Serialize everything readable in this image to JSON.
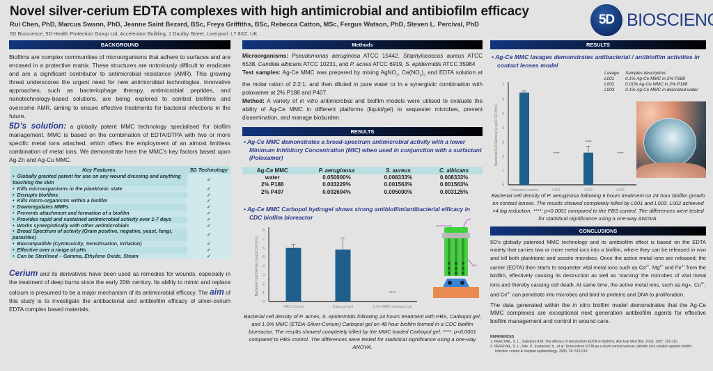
{
  "header": {
    "title": "Novel silver-cerium EDTA complexes with high antimicrobial and antibiofilm efficacy",
    "authors": "Rui Chen, PhD, Marcus Swann, PhD, Jeanne Saint Bezard, BSc, Freya Griffiths, BSc, Rebecca Catton, MSc, Fergus Watson, PhD, Steven L. Percival, PhD",
    "affiliation": "5D Bioscience, 5D Health Protection Group Ltd, Accelerator Building, 1 Daulby Street, Liverpool. L7 8XZ, UK",
    "logo_mark": "5D",
    "logo_text": "BIOSCIENCE"
  },
  "colors": {
    "accent": "#2a3a8e",
    "bar": "#1f5f8b",
    "table_bg": "#b9dfe2"
  },
  "background": {
    "heading": "BACKGROUND",
    "intro": "Biofilms are complex communities of microorganisms that adhere to surfaces and are encased in a protective matrix. These structures are notoriously difficult to eradicate and are a significant contributor to antimicrobial resistance (AMR). This growing threat underscores the urgent need for new antimicrobial technologies. Innovative approaches, such as bacteriophage therapy, antimicrobial peptides, and nanotechnology-based solutions, are being explored to combat biofilms and overcome AMR, aiming to ensure effective treatments for bacterial infections in the future.",
    "solution_label": "5D’s solution:",
    "solution_text": " a globally patent MMC technology specialised for biofilm management. MMC is based on the combination of EDTA/DTPA with two or more specific metal ions attached, which offers the employment of an almost limitless combination of metal ions. We demonstrate here the MMC’s key factors based upon Ag-Zn and Ag-Cu MMC.",
    "features_header": [
      "Key Features",
      "5D Technology"
    ],
    "check": "✓",
    "features": [
      "Globally granted patent for use on any wound dressing and anything touching the skin",
      "Kills microorganisms in the planktonic state",
      "Disrupts biofilms",
      "Kills micro-organisms within a biofilm",
      "Downregulates MMPs",
      "Prevents attachment and formation of a biofilm",
      "Provides rapid and sustained antimicrobial activity over 1-7 days",
      "Works synergistically with other antimicrobials",
      "Broad Spectrum of activity (Gram positive, negative, yeast, fungi, parasites)",
      "Biocompatible (Cytotoxicity, Sensitisation, Irritation)",
      "Effective over a range of pHs",
      "Can be Sterilised – Gamma, Ethylene Oxide, Steam"
    ],
    "cerium_label": "Cerium",
    "cerium_text": " and its derivatives have been used as remedies for wounds, especially in the treatment of deep burns since the early 20th century. Its ability to mimic and replace calcium is presumed to be a major mechanism of its antimicrobial efficacy. The ",
    "aim_label": "aim",
    "aim_text": " of this study is to investigate the antibacterial and antibiofilm efficacy of silver-cerium EDTA complex based materials."
  },
  "methods": {
    "heading": "Methods",
    "micro_label": "Microorganisms:",
    "micro_text_parts": [
      "Pseudomonas aeruginosa",
      " ATCC 15442, ",
      "Staphylococcus aureus",
      " ATCC 6538, ",
      "Candida albicans",
      " ATCC 10231, and ",
      "P. acnes",
      " ATCC 6919, ",
      "S. epidermidis",
      " ATCC 35984"
    ],
    "samples_label": "Test samples:",
    "samples_text_a": " Ag-Ce MMC was prepared by mixing AgNO",
    "samples_sub1": "3",
    "samples_text_b": ", Ce(NO",
    "samples_sub2": "3",
    "samples_text_c": ")",
    "samples_sub3": "3",
    "samples_text_d": " and EDTA solution at the molar ration of 2:2:1, and then diluted in pure water or in a synergistic combination with poloxamer at 2% P188 and P407.",
    "method_label": "Method:",
    "method_text_a": " A variety of ",
    "method_italic": "in vitro",
    "method_text_b": " antimicrobial and biofilm models were utilised to evaluate the ability of Ag-Ce MMC in different platforms (liquid/gel) to sequester microbes, prevent dissemination, and manage bioburden."
  },
  "results_mid": {
    "heading": "RESULTS",
    "bullet1": "Ag-Ce MMC demonstrates a broad-spectrum antimicrobial activity with a lower Minimum Inhibitory Concentration (MIC) when used in conjunction with a surfactant (Poloxamer)",
    "mic_table": {
      "headers": [
        "Ag-Ce MMC",
        "P. aeruginosa",
        "S. aureus",
        "C. albicans"
      ],
      "rows": [
        [
          "water",
          "0.050000%",
          "0.008333%",
          "0.008333%"
        ],
        [
          "2% P188",
          "0.003229%",
          "0.001563%",
          "0.001563%"
        ],
        [
          "2% P407",
          "0.002604%",
          "0.005000%",
          "0.003125%"
        ]
      ]
    },
    "bullet2": "Ag-Ce MMC Carbopol hydrogel shows strong antibiofilm/antibacterial efficacy in CDC biofilm bioreactor",
    "caption": "Bacterial cell density of  P. acnes, S. epidermidis following 24 hours treatment with PBS, Carbopol gel, and 1.0% MMC (ETDA-Silver-Cerium) Carbopol gel on 48 hour biofilm formed in a CDC biofilm bioreactor.  The results showed completely killed by the MMC loaded Carbopol gel. ****: p<0.0001 compared to PBS control. The differences were tested for statistical significance using a one-way ANOVA."
  },
  "results_right": {
    "heading": "RESULTS",
    "bullet": "Ag-Ce MMC lavages demonstrates antibacterial / antibiofilm activities in contact lenses model",
    "legend_header": [
      "Lavage",
      "Samples description:"
    ],
    "legend": [
      [
        "L001",
        "0.1% Ag-Ce MMC in 2% P188"
      ],
      [
        "L002",
        "0.01% Ag-Ce MMC in 2% P188"
      ],
      [
        "L003",
        "0.1% Ag-Ce MMC in deionized water"
      ]
    ],
    "caption": "Bacterial cell density of  P. aeruginosa following 6 hours treatment on 24 hour biofilm growth on contact lenses.  The results showed completely killed by L001 and L003. L002 achieved >4 log reduction. ****: p<0.0001 compared to the PBS control. The differences were tested for statistical significance using a one-way ANOVA."
  },
  "conclusions": {
    "heading": "CONCLUSIONS",
    "p1_a": "5D’s globally patented MMC technology and its antibiofilm effect is based on the EDTA moiety that carries two or more metal ions into a biofilm, where they can be released ",
    "p1_it": "in vivo",
    "p1_b": " and kill both planktonic and sessile microbes.  Once the active metal ions are released, the carrier (EDTA) then starts to sequester vital metal ions such as Ca",
    "sup_ca": "2+",
    "p1_c": ", Mg",
    "sup_mg": "2+",
    "p1_d": " and Fe",
    "sup_fe": "3+",
    "p1_e": " from the biofilm, effectively causing its destruction as well as ‘starving’ the microbes of vital metal ions and thereby causing cell death. At same time, the active metal ions, such as Ag+, Cu",
    "sup_cu": "2+",
    "p1_f": ", and Ce",
    "sup_ce": "3+",
    "p1_g": " can penetrate into microbes and bind to proteins and DNA to proliferation.",
    "p2_a": "The data generated within the ",
    "p2_it": "in vitro",
    "p2_b": " biofilm model demonstrates that the Ag-Ce MMC complexes are exceptional next generation antibiofilm agents for effective biofilm management and control in wound care."
  },
  "references": {
    "heading": "REFERENCES",
    "items": [
      "1.  PERCIVAL, S. L., Salisbury A.M. The efficacy of tetrasodium EDTA on biofilms. Adv Exp Med Biol. 2018, 1057: 101-110.",
      "2.  PERVIVAL, S. L., Kite, P., Eastwood, K., et al. Tetrasodium EDTA as a novel central venous catheter lock solution against biofilm. Infection control & hospital epidemiology. 2005, 26: 515-519"
    ]
  },
  "chart_data": [
    {
      "type": "bar",
      "title": "Ag-Ce MMC Carbopol hydrogel in CDC biofilm bioreactor",
      "categories": [
        "PBS Control",
        "Carbopol gel",
        "1.0% MMC Carbopol gel"
      ],
      "values": [
        6.0,
        5.8,
        0
      ],
      "errors": [
        0.4,
        1.3,
        0
      ],
      "annotations": [
        "",
        "",
        "****"
      ],
      "xlabel": "",
      "ylabel": "Bacterial Cell Density (log10 CFU/mL)",
      "ylim": [
        0,
        8
      ],
      "yticks": [
        0,
        1,
        2,
        3,
        4,
        5,
        6,
        7,
        8
      ],
      "grid": false
    },
    {
      "type": "bar",
      "title": "Ag-Ce MMC lavages in contact lenses model",
      "categories": [
        "Untreated control",
        "L001",
        "L002",
        "L003"
      ],
      "values": [
        6.45,
        0,
        2.25,
        0
      ],
      "errors": [
        0.12,
        0,
        0.45,
        0
      ],
      "annotations": [
        "",
        "****",
        "****",
        "****"
      ],
      "xlabel": "",
      "ylabel": "Bacterial Cell Density (Log10 CFU/mL)",
      "ylim": [
        0,
        7
      ],
      "yticks": [
        0,
        1,
        2,
        3,
        4,
        5,
        6,
        7
      ],
      "grid": false
    }
  ]
}
